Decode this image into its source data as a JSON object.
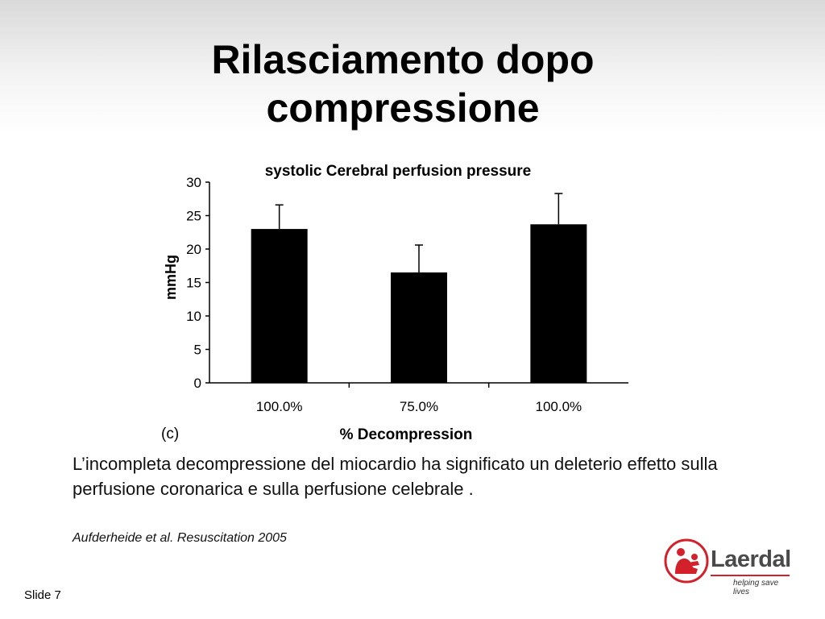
{
  "slide": {
    "title_line1": "Rilasciamento dopo",
    "title_line2": "compressione",
    "caption": "L’incompleta decompressione del miocardio ha significato un deleterio effetto sulla perfusione coronarica e sulla perfusione celebrale .",
    "citation": "Aufderheide et al. Resuscitation 2005",
    "slide_number": "Slide 7"
  },
  "logo": {
    "name": "Laerdal",
    "tagline": "helping save lives",
    "brand_color": "#d3212c"
  },
  "chart_data": {
    "type": "bar",
    "title": "systolic Cerebral perfusion pressure",
    "panel_label": "(c)",
    "xlabel": "% Decompression",
    "ylabel": "mmHg",
    "categories": [
      "100.0%",
      "75.0%",
      "100.0%"
    ],
    "values": [
      23,
      16.5,
      23.7
    ],
    "error_upper": [
      26.6,
      20.6,
      28.3
    ],
    "ylim": [
      0,
      30
    ],
    "yticks": [
      0,
      5,
      10,
      15,
      20,
      25,
      30
    ],
    "bar_color": "#000000",
    "grid": false
  }
}
